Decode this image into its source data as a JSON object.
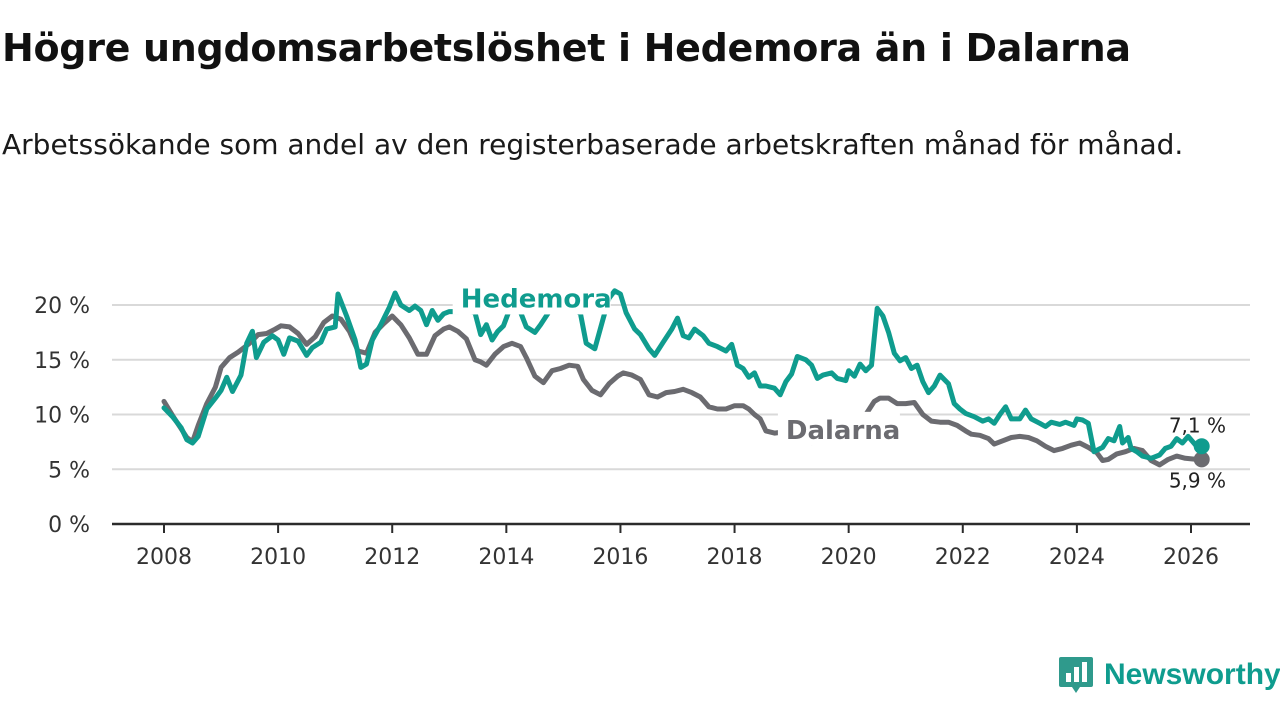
{
  "title": "Högre ungdomsarbetslöshet i Hedemora än i Dalarna",
  "subtitle": "Arbetssökande som andel av den registerbaserade arbetskraften månad för månad.",
  "colors": {
    "hedemora": "#0f9c8e",
    "dalarna": "#6b6b70",
    "grid": "#d9d9d9",
    "axis": "#2b2b2b"
  },
  "brand": {
    "name": "Newsworthy",
    "icon": "bar-chart-badge-icon"
  },
  "chart_data": {
    "type": "line",
    "title": "Högre ungdomsarbetslöshet i Hedemora än i Dalarna",
    "xlabel": "",
    "ylabel": "",
    "xlim": [
      2008,
      2026.75
    ],
    "ylim": [
      0,
      21
    ],
    "grid": true,
    "legend": "inline labels",
    "x_ticks": [
      2008,
      2010,
      2012,
      2014,
      2016,
      2018,
      2020,
      2022,
      2024,
      2026
    ],
    "x_tick_labels": [
      "2008",
      "2010",
      "2012",
      "2014",
      "2016",
      "2018",
      "2020",
      "2022",
      "2024",
      "2026"
    ],
    "y_ticks": [
      0,
      5,
      10,
      15,
      20
    ],
    "y_tick_labels": [
      "0 %",
      "5 %",
      "10 %",
      "15 %",
      "20 %"
    ],
    "series": [
      {
        "name": "Hedemora",
        "label_at": [
          2013.2,
          20.6
        ],
        "end_label": "7,1 %",
        "points": [
          [
            2008.0,
            10.6
          ],
          [
            2008.15,
            9.8
          ],
          [
            2008.3,
            8.8
          ],
          [
            2008.4,
            7.7
          ],
          [
            2008.5,
            7.4
          ],
          [
            2008.6,
            8.0
          ],
          [
            2008.75,
            10.5
          ],
          [
            2008.9,
            11.5
          ],
          [
            2009.0,
            12.2
          ],
          [
            2009.1,
            13.4
          ],
          [
            2009.2,
            12.1
          ],
          [
            2009.35,
            13.6
          ],
          [
            2009.45,
            16.5
          ],
          [
            2009.55,
            17.6
          ],
          [
            2009.62,
            15.2
          ],
          [
            2009.75,
            16.6
          ],
          [
            2009.9,
            17.2
          ],
          [
            2010.0,
            16.8
          ],
          [
            2010.1,
            15.5
          ],
          [
            2010.2,
            17.0
          ],
          [
            2010.35,
            16.7
          ],
          [
            2010.5,
            15.4
          ],
          [
            2010.6,
            16.1
          ],
          [
            2010.75,
            16.6
          ],
          [
            2010.85,
            17.8
          ],
          [
            2011.0,
            18.0
          ],
          [
            2011.05,
            21.0
          ],
          [
            2011.2,
            19.0
          ],
          [
            2011.35,
            16.8
          ],
          [
            2011.45,
            14.3
          ],
          [
            2011.55,
            14.6
          ],
          [
            2011.65,
            16.8
          ],
          [
            2011.8,
            18.2
          ],
          [
            2011.95,
            19.8
          ],
          [
            2012.05,
            21.1
          ],
          [
            2012.15,
            20.0
          ],
          [
            2012.3,
            19.5
          ],
          [
            2012.4,
            19.9
          ],
          [
            2012.5,
            19.5
          ],
          [
            2012.6,
            18.2
          ],
          [
            2012.7,
            19.5
          ],
          [
            2012.8,
            18.6
          ],
          [
            2012.9,
            19.2
          ],
          [
            2013.0,
            19.4
          ],
          [
            2013.15,
            19.4
          ],
          [
            2013.3,
            19.5
          ],
          [
            2013.45,
            19.3
          ],
          [
            2013.55,
            17.3
          ],
          [
            2013.65,
            18.2
          ],
          [
            2013.75,
            16.8
          ],
          [
            2013.85,
            17.6
          ],
          [
            2013.95,
            18.1
          ],
          [
            2014.05,
            19.5
          ],
          [
            2014.2,
            20.0
          ],
          [
            2014.35,
            18.0
          ],
          [
            2014.5,
            17.5
          ],
          [
            2014.6,
            18.2
          ],
          [
            2014.75,
            19.4
          ],
          [
            2014.9,
            20.2
          ],
          [
            2015.0,
            20.4
          ],
          [
            2015.15,
            19.8
          ],
          [
            2015.3,
            19.2
          ],
          [
            2015.4,
            16.5
          ],
          [
            2015.55,
            16.0
          ],
          [
            2015.7,
            18.8
          ],
          [
            2015.8,
            20.6
          ],
          [
            2015.9,
            21.3
          ],
          [
            2016.0,
            21.0
          ],
          [
            2016.1,
            19.3
          ],
          [
            2016.25,
            17.8
          ],
          [
            2016.35,
            17.3
          ],
          [
            2016.5,
            16.0
          ],
          [
            2016.6,
            15.4
          ],
          [
            2016.75,
            16.6
          ],
          [
            2016.9,
            17.8
          ],
          [
            2017.0,
            18.8
          ],
          [
            2017.1,
            17.2
          ],
          [
            2017.2,
            17.0
          ],
          [
            2017.3,
            17.8
          ],
          [
            2017.45,
            17.2
          ],
          [
            2017.55,
            16.5
          ],
          [
            2017.7,
            16.2
          ],
          [
            2017.85,
            15.8
          ],
          [
            2017.95,
            16.4
          ],
          [
            2018.05,
            14.5
          ],
          [
            2018.15,
            14.2
          ],
          [
            2018.25,
            13.4
          ],
          [
            2018.35,
            13.8
          ],
          [
            2018.45,
            12.6
          ],
          [
            2018.55,
            12.6
          ],
          [
            2018.7,
            12.4
          ],
          [
            2018.8,
            11.8
          ],
          [
            2018.9,
            13.0
          ],
          [
            2019.0,
            13.7
          ],
          [
            2019.1,
            15.3
          ],
          [
            2019.25,
            15.0
          ],
          [
            2019.35,
            14.5
          ],
          [
            2019.45,
            13.3
          ],
          [
            2019.55,
            13.6
          ],
          [
            2019.7,
            13.8
          ],
          [
            2019.8,
            13.3
          ],
          [
            2019.95,
            13.1
          ],
          [
            2020.0,
            14.0
          ],
          [
            2020.1,
            13.5
          ],
          [
            2020.2,
            14.6
          ],
          [
            2020.3,
            14.0
          ],
          [
            2020.4,
            14.5
          ],
          [
            2020.5,
            19.7
          ],
          [
            2020.6,
            19.0
          ],
          [
            2020.7,
            17.5
          ],
          [
            2020.8,
            15.6
          ],
          [
            2020.9,
            14.9
          ],
          [
            2021.0,
            15.2
          ],
          [
            2021.1,
            14.2
          ],
          [
            2021.2,
            14.5
          ],
          [
            2021.3,
            13.0
          ],
          [
            2021.4,
            12.0
          ],
          [
            2021.5,
            12.6
          ],
          [
            2021.6,
            13.6
          ],
          [
            2021.75,
            12.8
          ],
          [
            2021.85,
            11.0
          ],
          [
            2021.95,
            10.5
          ],
          [
            2022.05,
            10.1
          ],
          [
            2022.2,
            9.8
          ],
          [
            2022.35,
            9.4
          ],
          [
            2022.45,
            9.6
          ],
          [
            2022.55,
            9.2
          ],
          [
            2022.65,
            10.0
          ],
          [
            2022.75,
            10.7
          ],
          [
            2022.85,
            9.6
          ],
          [
            2023.0,
            9.6
          ],
          [
            2023.1,
            10.4
          ],
          [
            2023.2,
            9.6
          ],
          [
            2023.35,
            9.2
          ],
          [
            2023.45,
            8.9
          ],
          [
            2023.55,
            9.3
          ],
          [
            2023.7,
            9.1
          ],
          [
            2023.8,
            9.3
          ],
          [
            2023.95,
            9.0
          ],
          [
            2024.0,
            9.6
          ],
          [
            2024.1,
            9.5
          ],
          [
            2024.2,
            9.2
          ],
          [
            2024.3,
            6.6
          ],
          [
            2024.45,
            7.0
          ],
          [
            2024.55,
            7.8
          ],
          [
            2024.65,
            7.6
          ],
          [
            2024.75,
            8.9
          ],
          [
            2024.8,
            7.4
          ],
          [
            2024.9,
            7.9
          ],
          [
            2024.95,
            6.9
          ],
          [
            2025.05,
            6.6
          ],
          [
            2025.15,
            6.2
          ],
          [
            2025.3,
            6.0
          ],
          [
            2025.45,
            6.3
          ],
          [
            2025.55,
            6.9
          ],
          [
            2025.65,
            7.1
          ],
          [
            2025.75,
            7.8
          ],
          [
            2025.85,
            7.4
          ],
          [
            2025.95,
            8.0
          ],
          [
            2026.1,
            7.1
          ]
        ]
      },
      {
        "name": "Dalarna",
        "label_at": [
          2018.9,
          8.6
        ],
        "end_label": "5,9 %",
        "points": [
          [
            2008.0,
            11.2
          ],
          [
            2008.15,
            9.9
          ],
          [
            2008.3,
            8.7
          ],
          [
            2008.4,
            7.9
          ],
          [
            2008.5,
            7.5
          ],
          [
            2008.6,
            9.0
          ],
          [
            2008.75,
            11.0
          ],
          [
            2008.9,
            12.5
          ],
          [
            2009.0,
            14.3
          ],
          [
            2009.15,
            15.2
          ],
          [
            2009.3,
            15.7
          ],
          [
            2009.5,
            16.5
          ],
          [
            2009.65,
            17.3
          ],
          [
            2009.8,
            17.4
          ],
          [
            2009.95,
            17.8
          ],
          [
            2010.05,
            18.1
          ],
          [
            2010.2,
            18.0
          ],
          [
            2010.35,
            17.4
          ],
          [
            2010.5,
            16.4
          ],
          [
            2010.65,
            17.1
          ],
          [
            2010.8,
            18.4
          ],
          [
            2010.95,
            19.0
          ],
          [
            2011.1,
            18.7
          ],
          [
            2011.25,
            17.6
          ],
          [
            2011.4,
            15.8
          ],
          [
            2011.55,
            15.6
          ],
          [
            2011.7,
            17.5
          ],
          [
            2011.85,
            18.3
          ],
          [
            2012.0,
            19.0
          ],
          [
            2012.15,
            18.2
          ],
          [
            2012.3,
            17.0
          ],
          [
            2012.45,
            15.5
          ],
          [
            2012.6,
            15.5
          ],
          [
            2012.75,
            17.2
          ],
          [
            2012.9,
            17.8
          ],
          [
            2013.0,
            18.0
          ],
          [
            2013.15,
            17.6
          ],
          [
            2013.3,
            16.9
          ],
          [
            2013.45,
            15.0
          ],
          [
            2013.55,
            14.8
          ],
          [
            2013.65,
            14.5
          ],
          [
            2013.8,
            15.5
          ],
          [
            2013.95,
            16.2
          ],
          [
            2014.1,
            16.5
          ],
          [
            2014.25,
            16.2
          ],
          [
            2014.35,
            15.2
          ],
          [
            2014.5,
            13.5
          ],
          [
            2014.65,
            12.9
          ],
          [
            2014.8,
            14.0
          ],
          [
            2014.95,
            14.2
          ],
          [
            2015.1,
            14.5
          ],
          [
            2015.25,
            14.4
          ],
          [
            2015.35,
            13.2
          ],
          [
            2015.5,
            12.2
          ],
          [
            2015.65,
            11.8
          ],
          [
            2015.8,
            12.8
          ],
          [
            2015.95,
            13.5
          ],
          [
            2016.05,
            13.8
          ],
          [
            2016.2,
            13.6
          ],
          [
            2016.35,
            13.2
          ],
          [
            2016.5,
            11.8
          ],
          [
            2016.65,
            11.6
          ],
          [
            2016.8,
            12.0
          ],
          [
            2016.95,
            12.1
          ],
          [
            2017.1,
            12.3
          ],
          [
            2017.25,
            12.0
          ],
          [
            2017.4,
            11.6
          ],
          [
            2017.55,
            10.7
          ],
          [
            2017.7,
            10.5
          ],
          [
            2017.85,
            10.5
          ],
          [
            2018.0,
            10.8
          ],
          [
            2018.15,
            10.8
          ],
          [
            2018.25,
            10.5
          ],
          [
            2018.35,
            10.0
          ],
          [
            2018.45,
            9.6
          ],
          [
            2018.55,
            8.5
          ],
          [
            2018.7,
            8.3
          ],
          [
            2018.85,
            8.4
          ],
          [
            2018.95,
            8.5
          ],
          [
            2019.1,
            8.3
          ],
          [
            2019.25,
            7.9
          ],
          [
            2019.35,
            7.4
          ],
          [
            2019.45,
            7.8
          ],
          [
            2019.6,
            8.2
          ],
          [
            2019.75,
            8.9
          ],
          [
            2019.9,
            9.1
          ],
          [
            2020.0,
            9.3
          ],
          [
            2020.15,
            9.8
          ],
          [
            2020.3,
            10.0
          ],
          [
            2020.45,
            11.2
          ],
          [
            2020.55,
            11.5
          ],
          [
            2020.7,
            11.5
          ],
          [
            2020.85,
            11.0
          ],
          [
            2021.0,
            11.0
          ],
          [
            2021.15,
            11.1
          ],
          [
            2021.3,
            10.0
          ],
          [
            2021.45,
            9.4
          ],
          [
            2021.6,
            9.3
          ],
          [
            2021.75,
            9.3
          ],
          [
            2021.9,
            9.0
          ],
          [
            2022.05,
            8.5
          ],
          [
            2022.15,
            8.2
          ],
          [
            2022.3,
            8.1
          ],
          [
            2022.45,
            7.8
          ],
          [
            2022.55,
            7.3
          ],
          [
            2022.7,
            7.6
          ],
          [
            2022.85,
            7.9
          ],
          [
            2023.0,
            8.0
          ],
          [
            2023.15,
            7.9
          ],
          [
            2023.3,
            7.6
          ],
          [
            2023.45,
            7.1
          ],
          [
            2023.6,
            6.7
          ],
          [
            2023.75,
            6.9
          ],
          [
            2023.9,
            7.2
          ],
          [
            2024.05,
            7.4
          ],
          [
            2024.2,
            7.0
          ],
          [
            2024.35,
            6.5
          ],
          [
            2024.45,
            5.8
          ],
          [
            2024.55,
            5.9
          ],
          [
            2024.7,
            6.4
          ],
          [
            2024.85,
            6.6
          ],
          [
            2025.0,
            6.9
          ],
          [
            2025.15,
            6.7
          ],
          [
            2025.3,
            5.8
          ],
          [
            2025.45,
            5.4
          ],
          [
            2025.6,
            5.9
          ],
          [
            2025.75,
            6.2
          ],
          [
            2025.9,
            6.0
          ],
          [
            2026.1,
            5.9
          ]
        ]
      }
    ]
  }
}
